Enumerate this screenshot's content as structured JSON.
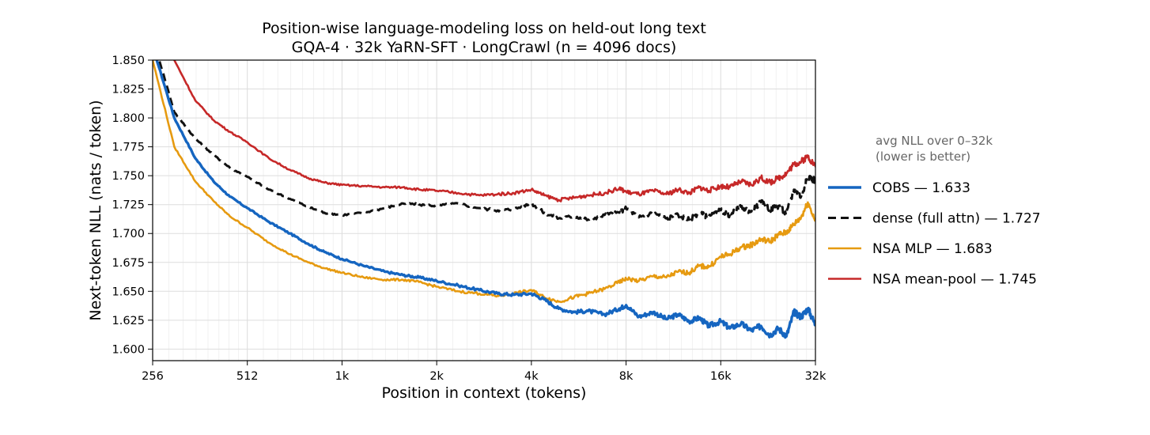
{
  "chart_data": {
    "type": "line",
    "title": "Position-wise language-modeling loss on held-out long text",
    "subtitle": "GQA-4 · 32k YaRN-SFT · LongCrawl (n = 4096 docs)",
    "xlabel": "Position in context (tokens)",
    "ylabel": "Next-token NLL  (nats / token)",
    "x_scale": "log2",
    "xlim": [
      256,
      32768
    ],
    "ylim": [
      1.59,
      1.85
    ],
    "x_ticks": [
      256,
      512,
      1024,
      2048,
      4096,
      8192,
      16384,
      32768
    ],
    "x_tick_labels": [
      "256",
      "512",
      "1k",
      "2k",
      "4k",
      "8k",
      "16k",
      "32k"
    ],
    "y_ticks": [
      1.6,
      1.625,
      1.65,
      1.675,
      1.7,
      1.725,
      1.75,
      1.775,
      1.8,
      1.825,
      1.85
    ],
    "y_tick_labels": [
      "1.600",
      "1.625",
      "1.650",
      "1.675",
      "1.700",
      "1.725",
      "1.750",
      "1.775",
      "1.800",
      "1.825",
      "1.850"
    ],
    "grid": true,
    "legend": {
      "placement": "right, outside plot",
      "title_line1": "avg NLL over 0–32k",
      "title_line2": "(lower is better)"
    },
    "series": [
      {
        "name": "COBS",
        "legend_label": "COBS — 1.633",
        "avg": 1.633,
        "color": "#1565c0",
        "style": "solid",
        "width": 3.4,
        "x": [
          256,
          300,
          350,
          400,
          450,
          512,
          600,
          700,
          800,
          900,
          1024,
          1200,
          1400,
          1600,
          1800,
          2048,
          2400,
          2800,
          3200,
          3600,
          4096,
          4500,
          5000,
          5600,
          6200,
          7000,
          7800,
          8192,
          9000,
          10000,
          11000,
          12000,
          13000,
          14000,
          15000,
          16384,
          17500,
          19000,
          20500,
          22000,
          23500,
          25000,
          26500,
          28000,
          29500,
          31000,
          32768
        ],
        "y": [
          1.862,
          1.8,
          1.765,
          1.745,
          1.732,
          1.722,
          1.71,
          1.7,
          1.691,
          1.684,
          1.678,
          1.672,
          1.667,
          1.664,
          1.662,
          1.659,
          1.655,
          1.651,
          1.648,
          1.647,
          1.648,
          1.643,
          1.635,
          1.632,
          1.633,
          1.63,
          1.635,
          1.638,
          1.628,
          1.632,
          1.626,
          1.63,
          1.624,
          1.627,
          1.62,
          1.624,
          1.618,
          1.622,
          1.616,
          1.62,
          1.612,
          1.618,
          1.611,
          1.632,
          1.628,
          1.635,
          1.621
        ]
      },
      {
        "name": "dense (full attn)",
        "legend_label": "dense (full attn) — 1.727",
        "avg": 1.727,
        "color": "#111111",
        "style": "dashed",
        "width": 3.0,
        "x": [
          256,
          300,
          350,
          400,
          450,
          512,
          600,
          700,
          800,
          900,
          1024,
          1200,
          1400,
          1600,
          1800,
          2048,
          2400,
          2800,
          3200,
          3600,
          4096,
          4500,
          5000,
          5600,
          6200,
          7000,
          7800,
          8192,
          9000,
          10000,
          11000,
          12000,
          13000,
          14000,
          15000,
          16384,
          17500,
          19000,
          20500,
          22000,
          23500,
          25000,
          26500,
          28000,
          29500,
          31000,
          32768
        ],
        "y": [
          1.87,
          1.805,
          1.782,
          1.768,
          1.757,
          1.749,
          1.738,
          1.73,
          1.723,
          1.718,
          1.716,
          1.718,
          1.722,
          1.726,
          1.725,
          1.724,
          1.726,
          1.722,
          1.72,
          1.721,
          1.726,
          1.718,
          1.713,
          1.715,
          1.712,
          1.716,
          1.718,
          1.722,
          1.714,
          1.718,
          1.713,
          1.716,
          1.712,
          1.718,
          1.714,
          1.72,
          1.716,
          1.723,
          1.719,
          1.727,
          1.721,
          1.724,
          1.717,
          1.738,
          1.732,
          1.749,
          1.746
        ]
      },
      {
        "name": "NSA MLP",
        "legend_label": "NSA MLP — 1.683",
        "avg": 1.683,
        "color": "#e69a10",
        "style": "solid",
        "width": 2.6,
        "x": [
          256,
          300,
          350,
          400,
          450,
          512,
          600,
          700,
          800,
          900,
          1024,
          1200,
          1400,
          1600,
          1800,
          2048,
          2400,
          2800,
          3200,
          3600,
          4096,
          4500,
          5000,
          5600,
          6200,
          7000,
          7800,
          8192,
          9000,
          10000,
          11000,
          12000,
          13000,
          14000,
          15000,
          16384,
          17500,
          19000,
          20500,
          22000,
          23500,
          25000,
          26500,
          28000,
          29500,
          31000,
          32768
        ],
        "y": [
          1.85,
          1.775,
          1.745,
          1.728,
          1.715,
          1.705,
          1.692,
          1.682,
          1.675,
          1.67,
          1.666,
          1.662,
          1.66,
          1.66,
          1.658,
          1.654,
          1.65,
          1.648,
          1.646,
          1.648,
          1.651,
          1.645,
          1.641,
          1.645,
          1.648,
          1.652,
          1.658,
          1.661,
          1.659,
          1.663,
          1.662,
          1.667,
          1.666,
          1.672,
          1.671,
          1.68,
          1.682,
          1.688,
          1.69,
          1.695,
          1.693,
          1.699,
          1.701,
          1.708,
          1.714,
          1.727,
          1.711
        ]
      },
      {
        "name": "NSA mean-pool",
        "legend_label": "NSA mean-pool — 1.745",
        "avg": 1.745,
        "color": "#c62828",
        "style": "solid",
        "width": 2.6,
        "x": [
          256,
          300,
          350,
          400,
          450,
          512,
          600,
          700,
          800,
          900,
          1024,
          1200,
          1400,
          1600,
          1800,
          2048,
          2400,
          2800,
          3200,
          3600,
          4096,
          4500,
          5000,
          5600,
          6200,
          7000,
          7800,
          8192,
          9000,
          10000,
          11000,
          12000,
          13000,
          14000,
          15000,
          16384,
          17500,
          19000,
          20500,
          22000,
          23500,
          25000,
          26500,
          28000,
          29500,
          31000,
          32768
        ],
        "y": [
          1.9,
          1.85,
          1.815,
          1.798,
          1.788,
          1.779,
          1.765,
          1.755,
          1.748,
          1.744,
          1.742,
          1.741,
          1.74,
          1.74,
          1.738,
          1.737,
          1.735,
          1.733,
          1.734,
          1.735,
          1.738,
          1.733,
          1.729,
          1.731,
          1.733,
          1.735,
          1.739,
          1.736,
          1.734,
          1.737,
          1.734,
          1.738,
          1.735,
          1.74,
          1.737,
          1.741,
          1.74,
          1.745,
          1.742,
          1.748,
          1.744,
          1.748,
          1.752,
          1.76,
          1.762,
          1.767,
          1.758
        ]
      }
    ]
  }
}
